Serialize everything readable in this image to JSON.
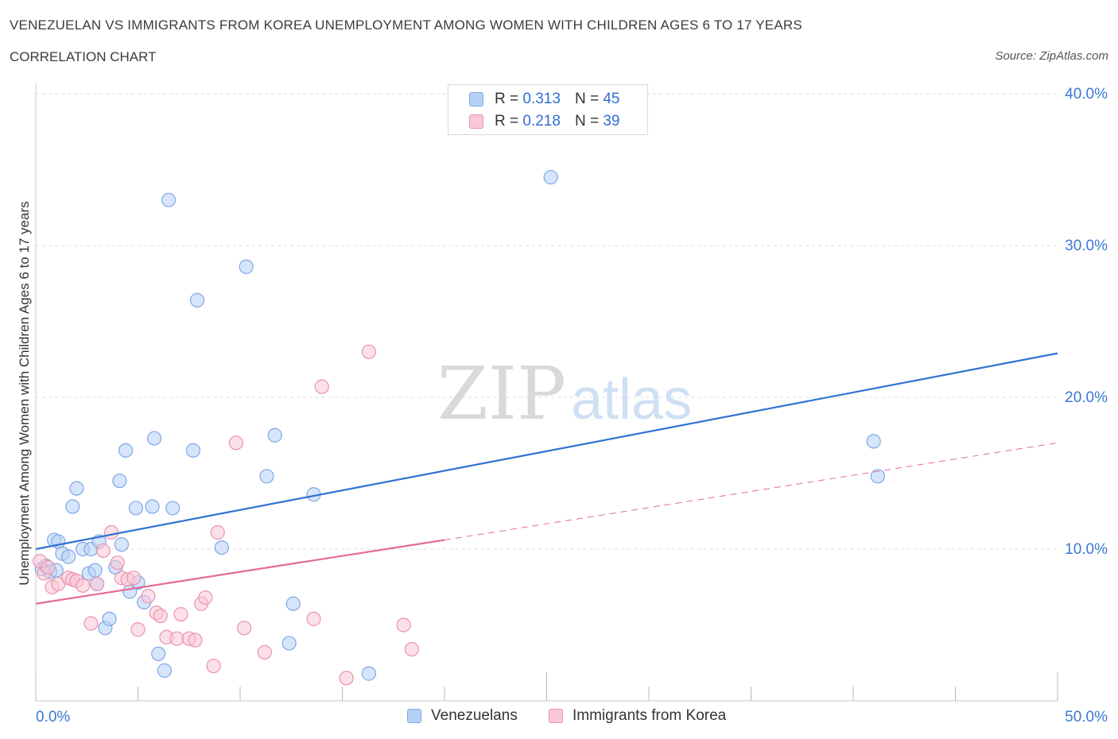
{
  "header": {
    "title": "VENEZUELAN VS IMMIGRANTS FROM KOREA UNEMPLOYMENT AMONG WOMEN WITH CHILDREN AGES 6 TO 17 YEARS",
    "subtitle": "CORRELATION CHART",
    "source": "Source: ZipAtlas.com"
  },
  "watermark": {
    "zip": "ZIP",
    "atlas": "atlas"
  },
  "legend": {
    "r_label": "R =",
    "n_label": "N =",
    "series": [
      {
        "r": "0.313",
        "n": "45"
      },
      {
        "r": "0.218",
        "n": "39"
      }
    ]
  },
  "bottom_legend": [
    "Venezuelans",
    "Immigrants from Korea"
  ],
  "colors": {
    "blue_fill": "#b7d0f5",
    "blue_stroke": "#7ea8e8",
    "blue_line": "#2f73d4",
    "pink_fill": "#f9c7d6",
    "pink_stroke": "#ec92ae",
    "pink_line": "#e46a94",
    "grid": "#dcdcdc",
    "axis_text": "#3a78d4"
  },
  "chart_data": {
    "type": "scatter",
    "xlabel": "",
    "ylabel": "Unemployment Among Women with Children Ages 6 to 17 years",
    "xlim": [
      0,
      50
    ],
    "ylim": [
      0,
      40
    ],
    "x_tick_labels": [
      "0.0%",
      "50.0%"
    ],
    "y_ticks": [
      10,
      20,
      30,
      40
    ],
    "y_tick_labels": [
      "10.0%",
      "20.0%",
      "30.0%",
      "40.0%"
    ],
    "grid": "horizontal dashed",
    "legend_position": "top-center",
    "series": [
      {
        "name": "Venezuelans",
        "r": 0.313,
        "n": 45,
        "trend": {
          "x": [
            0,
            50
          ],
          "y": [
            10.0,
            22.9
          ],
          "style": "solid"
        },
        "points": [
          [
            0.3,
            8.7
          ],
          [
            0.5,
            8.9
          ],
          [
            0.7,
            8.5
          ],
          [
            0.9,
            10.6
          ],
          [
            1.0,
            8.6
          ],
          [
            1.1,
            10.5
          ],
          [
            1.3,
            9.7
          ],
          [
            1.6,
            9.5
          ],
          [
            1.8,
            12.8
          ],
          [
            2.0,
            14.0
          ],
          [
            2.3,
            10.0
          ],
          [
            2.6,
            8.4
          ],
          [
            2.7,
            10.0
          ],
          [
            2.9,
            8.6
          ],
          [
            3.0,
            7.7
          ],
          [
            3.1,
            10.5
          ],
          [
            3.4,
            4.8
          ],
          [
            3.6,
            5.4
          ],
          [
            3.9,
            8.8
          ],
          [
            4.1,
            14.5
          ],
          [
            4.2,
            10.3
          ],
          [
            4.4,
            16.5
          ],
          [
            4.6,
            7.2
          ],
          [
            4.9,
            12.7
          ],
          [
            5.0,
            7.8
          ],
          [
            5.3,
            6.5
          ],
          [
            5.7,
            12.8
          ],
          [
            5.8,
            17.3
          ],
          [
            6.0,
            3.1
          ],
          [
            6.3,
            2.0
          ],
          [
            6.5,
            33.0
          ],
          [
            6.7,
            12.7
          ],
          [
            7.7,
            16.5
          ],
          [
            7.9,
            26.4
          ],
          [
            9.1,
            10.1
          ],
          [
            10.3,
            28.6
          ],
          [
            11.3,
            14.8
          ],
          [
            11.7,
            17.5
          ],
          [
            12.4,
            3.8
          ],
          [
            12.6,
            6.4
          ],
          [
            13.6,
            13.6
          ],
          [
            16.3,
            1.8
          ],
          [
            25.2,
            34.5
          ],
          [
            41.0,
            17.1
          ],
          [
            41.2,
            14.8
          ]
        ]
      },
      {
        "name": "Immigrants from Korea",
        "r": 0.218,
        "n": 39,
        "trend": {
          "x": [
            0,
            20
          ],
          "y": [
            6.4,
            10.6
          ],
          "style": "solid"
        },
        "trend_extension": {
          "x": [
            20,
            50
          ],
          "y": [
            10.6,
            17.0
          ],
          "style": "dashed"
        },
        "points": [
          [
            0.2,
            9.2
          ],
          [
            0.4,
            8.4
          ],
          [
            0.6,
            8.8
          ],
          [
            0.8,
            7.5
          ],
          [
            1.1,
            7.7
          ],
          [
            1.6,
            8.1
          ],
          [
            1.8,
            8.0
          ],
          [
            2.0,
            7.9
          ],
          [
            2.3,
            7.6
          ],
          [
            2.7,
            5.1
          ],
          [
            3.0,
            7.7
          ],
          [
            3.3,
            9.9
          ],
          [
            3.7,
            11.1
          ],
          [
            4.0,
            9.1
          ],
          [
            4.2,
            8.1
          ],
          [
            4.5,
            8.0
          ],
          [
            4.8,
            8.1
          ],
          [
            5.0,
            4.7
          ],
          [
            5.5,
            6.9
          ],
          [
            5.9,
            5.8
          ],
          [
            6.1,
            5.6
          ],
          [
            6.4,
            4.2
          ],
          [
            6.9,
            4.1
          ],
          [
            7.1,
            5.7
          ],
          [
            7.5,
            4.1
          ],
          [
            7.8,
            4.0
          ],
          [
            8.1,
            6.4
          ],
          [
            8.3,
            6.8
          ],
          [
            8.7,
            2.3
          ],
          [
            8.9,
            11.1
          ],
          [
            9.8,
            17.0
          ],
          [
            10.2,
            4.8
          ],
          [
            11.2,
            3.2
          ],
          [
            13.6,
            5.4
          ],
          [
            14.0,
            20.7
          ],
          [
            15.2,
            1.5
          ],
          [
            16.3,
            23.0
          ],
          [
            18.0,
            5.0
          ],
          [
            18.4,
            3.4
          ]
        ]
      }
    ]
  }
}
